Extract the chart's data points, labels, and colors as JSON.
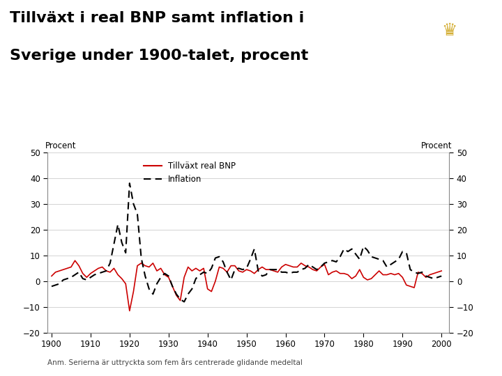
{
  "title_line1": "Tillväxt i real BNP samt inflation i",
  "title_line2": "Sverige under 1900-talet, procent",
  "ylabel_left": "Procent",
  "ylabel_right": "Procent",
  "note": "Anm. Serierna är uttryckta som fem års centrerade glidande medeltal",
  "legend_bnp": "Tillväxt real BNP",
  "legend_inf": "Inflation",
  "xlim": [
    1899,
    2002
  ],
  "ylim": [
    -20,
    50
  ],
  "yticks": [
    -20,
    -10,
    0,
    10,
    20,
    30,
    40,
    50
  ],
  "xticks": [
    1900,
    1910,
    1920,
    1930,
    1940,
    1950,
    1960,
    1970,
    1980,
    1990,
    2000
  ],
  "bg_color": "#ffffff",
  "plot_bg": "#ffffff",
  "title_color": "#000000",
  "bnp_color": "#cc0000",
  "inf_color": "#000000",
  "bar_color": "#1a3a8c",
  "years": [
    1900,
    1901,
    1902,
    1903,
    1904,
    1905,
    1906,
    1907,
    1908,
    1909,
    1910,
    1911,
    1912,
    1913,
    1914,
    1915,
    1916,
    1917,
    1918,
    1919,
    1920,
    1921,
    1922,
    1923,
    1924,
    1925,
    1926,
    1927,
    1928,
    1929,
    1930,
    1931,
    1932,
    1933,
    1934,
    1935,
    1936,
    1937,
    1938,
    1939,
    1940,
    1941,
    1942,
    1943,
    1944,
    1945,
    1946,
    1947,
    1948,
    1949,
    1950,
    1951,
    1952,
    1953,
    1954,
    1955,
    1956,
    1957,
    1958,
    1959,
    1960,
    1961,
    1962,
    1963,
    1964,
    1965,
    1966,
    1967,
    1968,
    1969,
    1970,
    1971,
    1972,
    1973,
    1974,
    1975,
    1976,
    1977,
    1978,
    1979,
    1980,
    1981,
    1982,
    1983,
    1984,
    1985,
    1986,
    1987,
    1988,
    1989,
    1990,
    1991,
    1992,
    1993,
    1994,
    1995,
    1996,
    1997,
    1998,
    1999,
    2000
  ],
  "bnp": [
    2.0,
    3.5,
    4.0,
    4.5,
    5.0,
    5.5,
    8.0,
    6.0,
    3.0,
    1.5,
    3.0,
    4.0,
    5.0,
    5.5,
    4.0,
    3.5,
    5.0,
    2.5,
    1.0,
    -1.0,
    -11.5,
    -4.0,
    6.0,
    7.0,
    6.0,
    5.5,
    7.0,
    4.0,
    5.0,
    2.5,
    1.5,
    -2.0,
    -5.5,
    -7.5,
    1.5,
    5.5,
    4.0,
    5.0,
    4.0,
    5.0,
    -3.0,
    -4.0,
    0.0,
    5.5,
    5.0,
    3.5,
    6.0,
    6.0,
    4.0,
    3.5,
    4.5,
    4.0,
    3.0,
    4.5,
    5.5,
    4.5,
    4.5,
    4.0,
    3.5,
    5.5,
    6.5,
    6.0,
    5.5,
    5.5,
    7.0,
    6.0,
    5.5,
    4.5,
    4.0,
    5.5,
    6.5,
    2.5,
    3.5,
    4.0,
    3.0,
    3.0,
    2.5,
    1.0,
    2.0,
    4.5,
    1.5,
    0.5,
    1.0,
    2.5,
    4.0,
    2.5,
    2.5,
    3.0,
    2.5,
    3.0,
    1.5,
    -1.5,
    -2.0,
    -2.5,
    3.5,
    3.0,
    1.5,
    2.5,
    3.0,
    3.5,
    4.0
  ],
  "inflation": [
    -2.0,
    -1.5,
    -1.0,
    0.5,
    1.0,
    1.5,
    2.5,
    3.5,
    1.0,
    0.5,
    1.5,
    2.5,
    3.0,
    3.5,
    4.0,
    7.0,
    14.5,
    22.0,
    15.0,
    11.0,
    38.0,
    30.0,
    26.0,
    9.0,
    2.0,
    -3.0,
    -5.0,
    -1.0,
    1.5,
    3.0,
    2.0,
    -2.0,
    -5.0,
    -7.0,
    -8.0,
    -5.0,
    -3.0,
    1.0,
    2.5,
    3.5,
    3.0,
    5.0,
    9.0,
    9.5,
    7.5,
    3.5,
    0.5,
    4.5,
    5.0,
    4.5,
    5.0,
    8.5,
    12.5,
    4.0,
    2.0,
    2.5,
    4.5,
    4.5,
    4.5,
    3.5,
    3.5,
    3.0,
    3.5,
    3.5,
    4.5,
    5.0,
    6.5,
    5.5,
    4.5,
    5.5,
    7.0,
    7.5,
    8.0,
    7.5,
    9.5,
    12.5,
    11.5,
    12.5,
    10.5,
    8.5,
    13.5,
    12.0,
    9.5,
    9.0,
    8.5,
    8.0,
    5.5,
    6.5,
    7.5,
    8.5,
    11.5,
    11.0,
    4.5,
    3.5,
    3.0,
    3.5,
    2.0,
    1.5,
    1.0,
    1.5,
    2.0
  ]
}
